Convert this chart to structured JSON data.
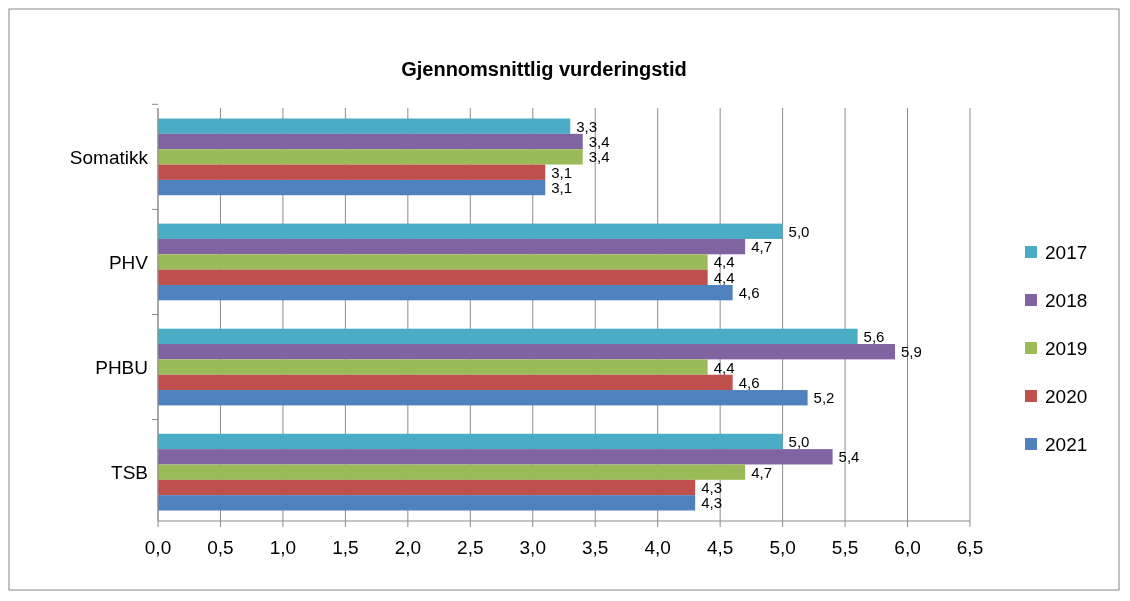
{
  "chart_data": {
    "type": "bar",
    "orientation": "horizontal",
    "title": "Gjennomsnittlig vurderingstid",
    "categories": [
      "Somatikk",
      "PHV",
      "PHBU",
      "TSB"
    ],
    "series": [
      {
        "name": "2017",
        "color": "#4bacc6",
        "values": [
          3.3,
          5.0,
          5.6,
          5.0
        ],
        "value_labels": [
          "3,3",
          "5,0",
          "5,6",
          "5,0"
        ]
      },
      {
        "name": "2018",
        "color": "#8064a2",
        "values": [
          3.4,
          4.7,
          5.9,
          5.4
        ],
        "value_labels": [
          "3,4",
          "4,7",
          "5,9",
          "5,4"
        ]
      },
      {
        "name": "2019",
        "color": "#9bbb59",
        "values": [
          3.4,
          4.4,
          4.4,
          4.7
        ],
        "value_labels": [
          "3,4",
          "4,4",
          "4,4",
          "4,7"
        ]
      },
      {
        "name": "2020",
        "color": "#c0504d",
        "values": [
          3.1,
          4.4,
          4.6,
          4.3
        ],
        "value_labels": [
          "3,1",
          "4,4",
          "4,6",
          "4,3"
        ]
      },
      {
        "name": "2021",
        "color": "#4f81bd",
        "values": [
          3.1,
          4.6,
          5.2,
          4.3
        ],
        "value_labels": [
          "3,1",
          "4,6",
          "5,2",
          "4,3"
        ]
      }
    ],
    "xlim": [
      0,
      6.5
    ],
    "xticks": [
      {
        "value": 0,
        "label": "0,0"
      },
      {
        "value": 0.5,
        "label": "0,5"
      },
      {
        "value": 1,
        "label": "1,0"
      },
      {
        "value": 1.5,
        "label": "1,5"
      },
      {
        "value": 2,
        "label": "2,0"
      },
      {
        "value": 2.5,
        "label": "2,5"
      },
      {
        "value": 3,
        "label": "3,0"
      },
      {
        "value": 3.5,
        "label": "3,5"
      },
      {
        "value": 4,
        "label": "4,0"
      },
      {
        "value": 4.5,
        "label": "4,5"
      },
      {
        "value": 5,
        "label": "5,0"
      },
      {
        "value": 5.5,
        "label": "5,5"
      },
      {
        "value": 6,
        "label": "6,0"
      },
      {
        "value": 6.5,
        "label": "6,5"
      }
    ],
    "grid": "x",
    "legend": "right"
  }
}
